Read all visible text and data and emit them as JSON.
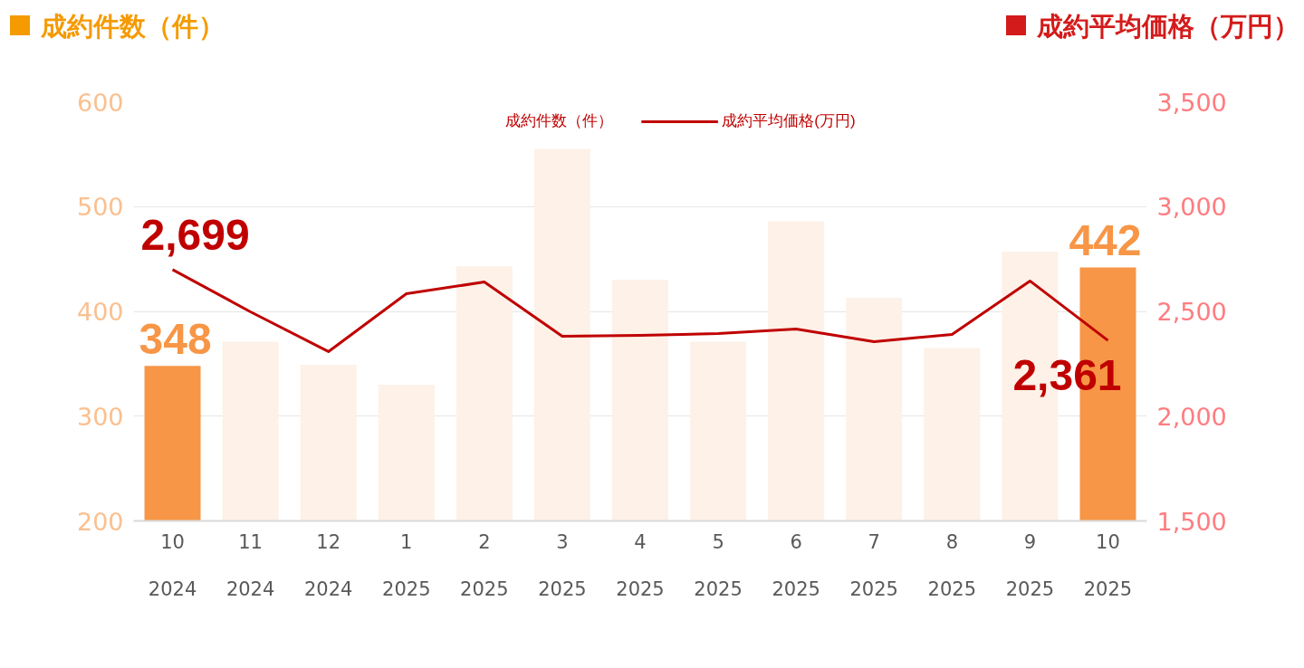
{
  "chart_data": {
    "type": "bar",
    "categories": [
      "10\n2024",
      "11\n2024",
      "12\n2024",
      "1\n2025",
      "2\n2025",
      "3\n2025",
      "4\n2025",
      "5\n2025",
      "6\n2025",
      "7\n2025",
      "8\n2025",
      "9\n2025",
      "10\n2025"
    ],
    "ylabel": "成約件数（件）",
    "y2label": "成約平均価格（万円）",
    "ylim": [
      200,
      600
    ],
    "yticks": [
      200,
      300,
      400,
      500,
      600
    ],
    "y2lim": [
      1500,
      3500
    ],
    "y2ticks": [
      {
        "value": 1500,
        "label": "1,500"
      },
      {
        "value": 2000,
        "label": "2,000"
      },
      {
        "value": 2500,
        "label": "2,500"
      },
      {
        "value": 3000,
        "label": "3,000"
      },
      {
        "value": 3500,
        "label": "3,500"
      }
    ],
    "grid": "y",
    "legend": "top",
    "series": [
      {
        "name": "成約件数（件）",
        "color": "#fdf1e8",
        "colors": [
          "#f79646",
          "#fdf1e8",
          "#fdf1e8",
          "#fdf1e8",
          "#fdf1e8",
          "#fdf1e8",
          "#fdf1e8",
          "#fdf1e8",
          "#fdf1e8",
          "#fdf1e8",
          "#fdf1e8",
          "#fdf1e8",
          "#f79646"
        ],
        "values": [
          348,
          371,
          349,
          330,
          443,
          555,
          430,
          371,
          486,
          413,
          365,
          457,
          442
        ],
        "value_labels": [
          "348",
          null,
          null,
          null,
          null,
          null,
          null,
          null,
          null,
          null,
          null,
          null,
          "442"
        ]
      },
      {
        "name": "成約平均価格(万円)",
        "type": "line",
        "axis": "y2",
        "color": "#c00000",
        "marker": "none",
        "line_style": "solid",
        "values": [
          2699,
          2498,
          2308,
          2584,
          2640,
          2381,
          2386,
          2394,
          2416,
          2355,
          2390,
          2645,
          2361
        ],
        "value_labels": [
          "2,699",
          null,
          null,
          null,
          null,
          null,
          null,
          null,
          null,
          null,
          null,
          null,
          "2,361"
        ]
      }
    ]
  }
}
